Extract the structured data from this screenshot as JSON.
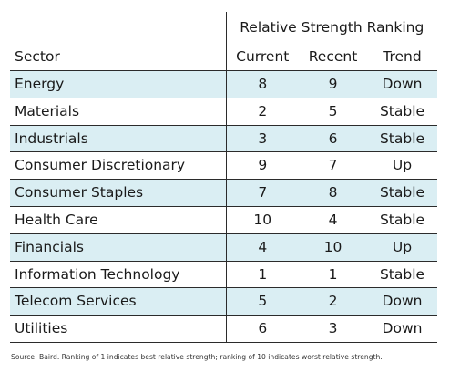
{
  "chart_data": {
    "type": "table",
    "group_header": "Relative Strength Ranking",
    "columns": [
      "Sector",
      "Current",
      "Recent",
      "Trend"
    ],
    "rows": [
      {
        "sector": "Energy",
        "current": "8",
        "recent": "9",
        "trend": "Down"
      },
      {
        "sector": "Materials",
        "current": "2",
        "recent": "5",
        "trend": "Stable"
      },
      {
        "sector": "Industrials",
        "current": "3",
        "recent": "6",
        "trend": "Stable"
      },
      {
        "sector": "Consumer Discretionary",
        "current": "9",
        "recent": "7",
        "trend": "Up"
      },
      {
        "sector": "Consumer Staples",
        "current": "7",
        "recent": "8",
        "trend": "Stable"
      },
      {
        "sector": "Health Care",
        "current": "10",
        "recent": "4",
        "trend": "Stable"
      },
      {
        "sector": "Financials",
        "current": "4",
        "recent": "10",
        "trend": "Up"
      },
      {
        "sector": "Information Technology",
        "current": "1",
        "recent": "1",
        "trend": "Stable"
      },
      {
        "sector": "Telecom Services",
        "current": "5",
        "recent": "2",
        "trend": "Down"
      },
      {
        "sector": "Utilities",
        "current": "6",
        "recent": "3",
        "trend": "Down"
      }
    ],
    "alternate_row_color": "#daeef3"
  },
  "footnote": "Source: Baird. Ranking of 1 indicates best relative strength; ranking of 10 indicates worst relative strength."
}
